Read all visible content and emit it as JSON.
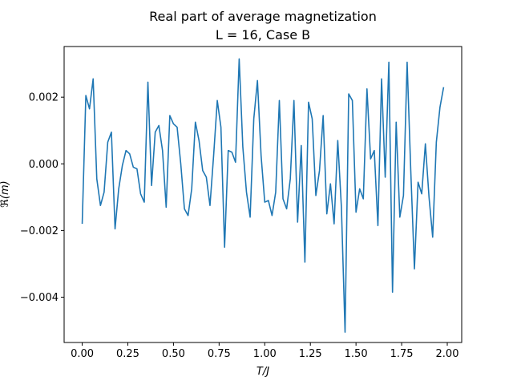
{
  "chart_data": {
    "type": "line",
    "title": "Real part of average magnetization",
    "subtitle": "L = 16, Case B",
    "xlabel": "T/J",
    "ylabel": "ℜ(m)",
    "xlim": [
      -0.099,
      2.079
    ],
    "ylim": [
      -0.00536,
      0.00352
    ],
    "xticks": [
      0.0,
      0.25,
      0.5,
      0.75,
      1.0,
      1.25,
      1.5,
      1.75,
      2.0
    ],
    "xtick_labels": [
      "0.00",
      "0.25",
      "0.50",
      "0.75",
      "1.00",
      "1.25",
      "1.50",
      "1.75",
      "2.00"
    ],
    "yticks": [
      -0.004,
      -0.002,
      0.0,
      0.002
    ],
    "ytick_labels": [
      "−0.004",
      "−0.002",
      "0.000",
      "0.002"
    ],
    "grid": false,
    "series": [
      {
        "color": "#1f77b4",
        "x": [
          0.0,
          0.02,
          0.04,
          0.06,
          0.08,
          0.1,
          0.12,
          0.14,
          0.16,
          0.18,
          0.2,
          0.22,
          0.24,
          0.26,
          0.28,
          0.3,
          0.32,
          0.34,
          0.36,
          0.38,
          0.4,
          0.42,
          0.44,
          0.46,
          0.48,
          0.5,
          0.52,
          0.54,
          0.56,
          0.58,
          0.6,
          0.62,
          0.64,
          0.66,
          0.68,
          0.7,
          0.72,
          0.74,
          0.76,
          0.78,
          0.8,
          0.82,
          0.84,
          0.86,
          0.88,
          0.9,
          0.92,
          0.94,
          0.96,
          0.98,
          1.0,
          1.02,
          1.04,
          1.06,
          1.08,
          1.1,
          1.12,
          1.14,
          1.16,
          1.18,
          1.2,
          1.22,
          1.24,
          1.26,
          1.28,
          1.3,
          1.32,
          1.34,
          1.36,
          1.38,
          1.4,
          1.42,
          1.44,
          1.46,
          1.48,
          1.5,
          1.52,
          1.54,
          1.56,
          1.58,
          1.6,
          1.62,
          1.64,
          1.66,
          1.68,
          1.7,
          1.72,
          1.74,
          1.76,
          1.78,
          1.8,
          1.82,
          1.84,
          1.86,
          1.88,
          1.9,
          1.92,
          1.94,
          1.96,
          1.98
        ],
        "y": [
          -0.0018,
          0.00205,
          0.00165,
          0.00255,
          -0.00045,
          -0.00125,
          -0.00085,
          0.00065,
          0.00095,
          -0.00195,
          -0.00075,
          -5e-05,
          0.0004,
          0.0003,
          -0.0001,
          -0.00015,
          -0.0009,
          -0.00115,
          0.00245,
          -0.00065,
          0.00095,
          0.00115,
          0.0004,
          -0.0013,
          0.00145,
          0.0012,
          0.0011,
          0.0,
          -0.00135,
          -0.00155,
          -0.00075,
          0.00125,
          0.0007,
          -0.0002,
          -0.0004,
          -0.00125,
          0.00025,
          0.0019,
          0.0011,
          -0.0025,
          0.0004,
          0.00035,
          5e-05,
          0.00315,
          0.0005,
          -0.00085,
          -0.0016,
          0.00135,
          0.0025,
          0.00025,
          -0.00115,
          -0.0011,
          -0.00155,
          -0.00085,
          0.0019,
          -0.00105,
          -0.00135,
          -0.00045,
          0.0019,
          -0.00175,
          0.00055,
          -0.00295,
          0.00185,
          0.00135,
          -0.00095,
          -0.0002,
          0.00145,
          -0.0015,
          -0.0006,
          -0.0018,
          0.0007,
          -0.0013,
          -0.00505,
          0.0021,
          0.0019,
          -0.00145,
          -0.00075,
          -0.00105,
          0.00225,
          0.00015,
          0.0004,
          -0.00185,
          0.00255,
          -0.0004,
          0.00305,
          -0.00385,
          0.00125,
          -0.0016,
          -0.00095,
          0.00305,
          -0.0002,
          -0.00315,
          -0.00055,
          -0.0009,
          0.0006,
          -0.001,
          -0.0022,
          0.00065,
          0.0017,
          0.0023
        ]
      }
    ]
  }
}
